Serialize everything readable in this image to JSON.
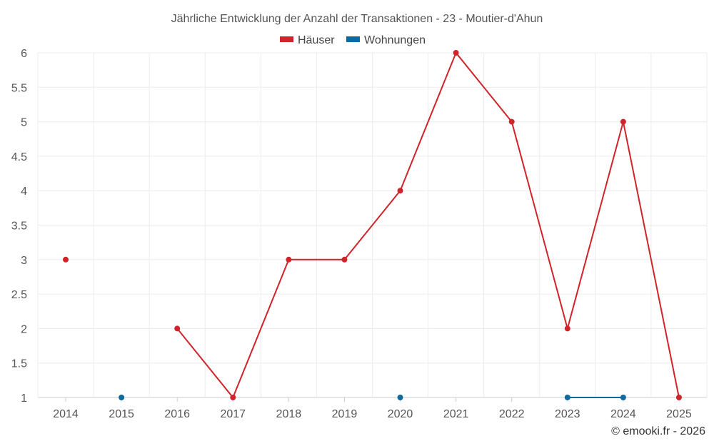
{
  "chart_data": {
    "type": "line",
    "title": "Jährliche Entwicklung der Anzahl der Transaktionen - 23 - Moutier-d'Ahun",
    "x": [
      "2014",
      "2015",
      "2016",
      "2017",
      "2018",
      "2019",
      "2020",
      "2021",
      "2022",
      "2023",
      "2024",
      "2025"
    ],
    "yticks": [
      "1",
      "1.5",
      "2",
      "2.5",
      "3",
      "3.5",
      "4",
      "4.5",
      "5",
      "5.5",
      "6"
    ],
    "ylim": [
      1,
      6
    ],
    "grid": true,
    "legend_position": "top-center",
    "series": [
      {
        "name": "Häuser",
        "color": "#d0232a",
        "values": [
          3,
          null,
          2,
          1,
          3,
          3,
          4,
          6,
          5,
          2,
          5,
          1
        ]
      },
      {
        "name": "Wohnungen",
        "color": "#0b6aa2",
        "values": [
          null,
          1,
          null,
          null,
          null,
          null,
          1,
          null,
          null,
          1,
          1,
          null
        ]
      }
    ]
  },
  "credit": "© emooki.fr - 2026"
}
